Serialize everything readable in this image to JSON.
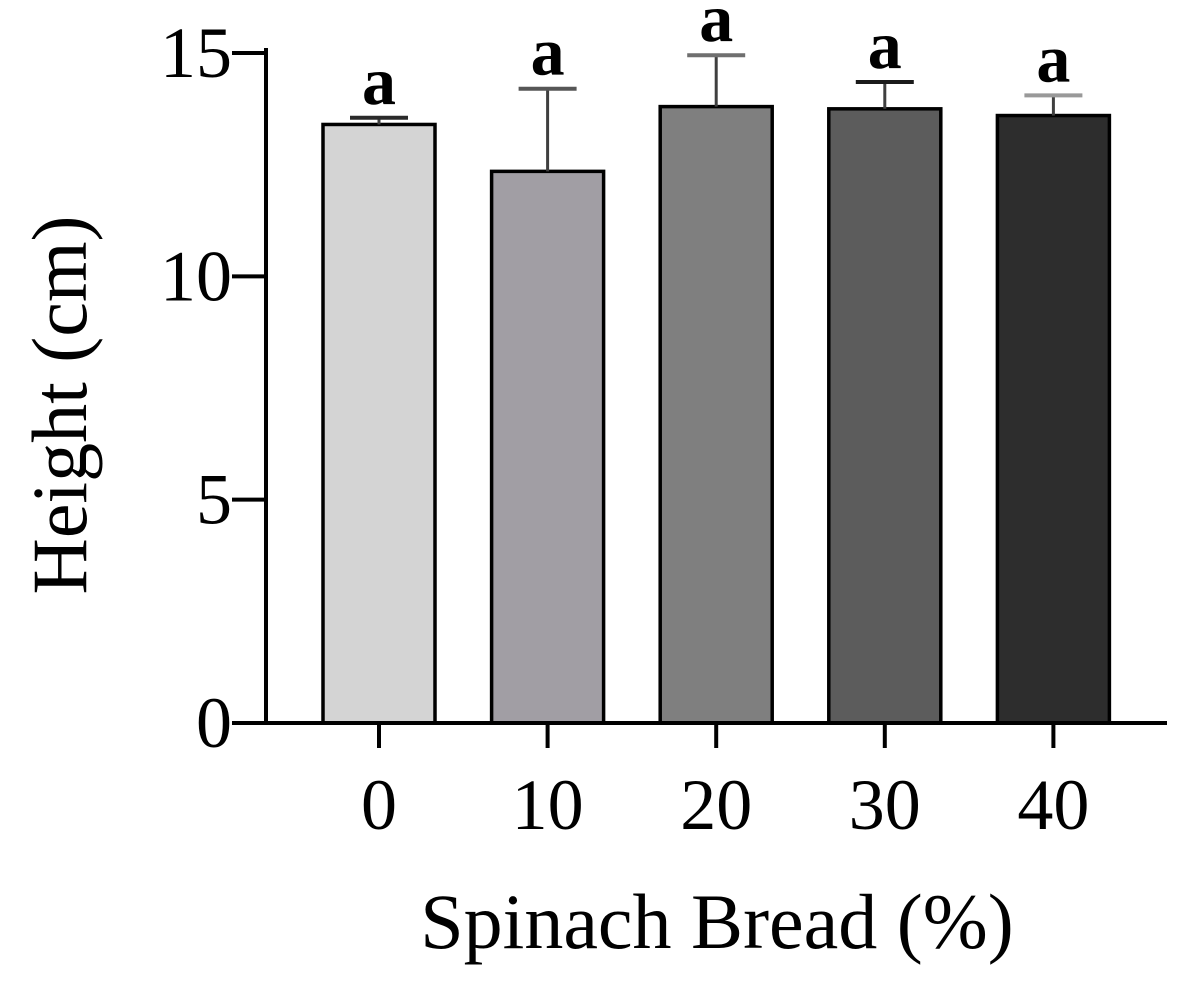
{
  "figure": {
    "background": "#ffffff"
  },
  "chart_data": {
    "type": "bar",
    "title": "",
    "xlabel": "Spinach Bread (%)",
    "ylabel": "Height (cm)",
    "categories": [
      "0",
      "10",
      "20",
      "30",
      "40"
    ],
    "series": [
      {
        "name": "Height (cm)",
        "values": [
          13.4,
          12.35,
          13.8,
          13.75,
          13.6
        ],
        "errors_plus": [
          0.15,
          1.85,
          1.15,
          0.6,
          0.45
        ]
      }
    ],
    "bar_annotations": [
      "a",
      "a",
      "a",
      "a",
      "a"
    ],
    "ylim": [
      0,
      15
    ],
    "yticks": [
      0,
      5,
      10,
      15
    ],
    "grid": false,
    "legend": false,
    "legend_position": "none",
    "bar_fill_colors": [
      "#d4d4d4",
      "#a19ea4",
      "#7f7f7f",
      "#5c5c5c",
      "#2d2d2d"
    ],
    "bar_border_color": "#000000",
    "error_bar_color": "#3f3f3f",
    "error_cap_colors": [
      "#2a2a2a",
      "#565656",
      "#6f6f6f",
      "#1a1a1a",
      "#999999"
    ],
    "axis_color": "#000000",
    "text_color": "#000000"
  }
}
